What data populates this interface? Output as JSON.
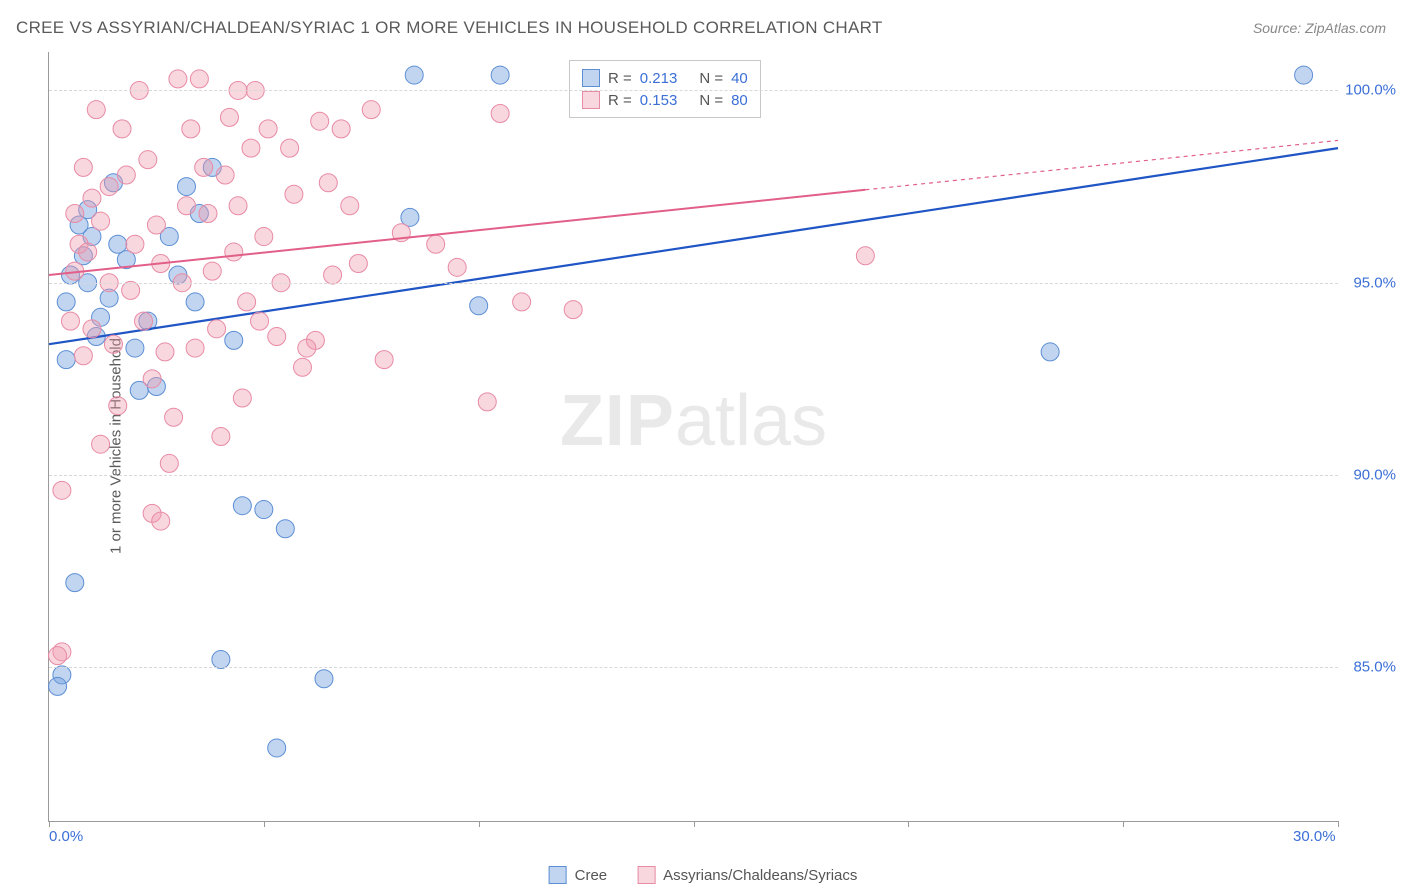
{
  "title": "CREE VS ASSYRIAN/CHALDEAN/SYRIAC 1 OR MORE VEHICLES IN HOUSEHOLD CORRELATION CHART",
  "source": "Source: ZipAtlas.com",
  "y_axis_label": "1 or more Vehicles in Household",
  "watermark_a": "ZIP",
  "watermark_b": "atlas",
  "chart": {
    "type": "scatter",
    "xlim": [
      0,
      30
    ],
    "ylim": [
      81,
      101
    ],
    "x_ticks": [
      0,
      5,
      10,
      15,
      20,
      25,
      30
    ],
    "x_tick_labels": {
      "0": "0.0%",
      "30": "30.0%"
    },
    "y_ticks": [
      85,
      90,
      95,
      100
    ],
    "y_tick_labels": {
      "85": "85.0%",
      "90": "90.0%",
      "95": "95.0%",
      "100": "100.0%"
    },
    "grid_color": "#d8d8d8",
    "axis_color": "#9a9a9a",
    "background_color": "#ffffff",
    "tick_label_color": "#3b6fd6",
    "marker_radius": 9,
    "series": [
      {
        "name": "Cree",
        "fill": "rgba(118,162,225,0.45)",
        "stroke": "#5d8fd4",
        "line_color": "#1f55c4",
        "line_width": 2.2,
        "r_label": "R =",
        "r_value": "0.213",
        "n_label": "N =",
        "n_value": "40",
        "trend": {
          "x1": 0,
          "y1": 93.4,
          "x2": 30,
          "y2": 98.5
        },
        "trend_solid_end_x": 30,
        "points": [
          [
            0.7,
            96.5
          ],
          [
            0.8,
            95.7
          ],
          [
            0.9,
            96.9
          ],
          [
            1.2,
            94.1
          ],
          [
            1.1,
            93.6
          ],
          [
            0.5,
            95.2
          ],
          [
            0.4,
            93.0
          ],
          [
            0.6,
            87.2
          ],
          [
            1.5,
            97.6
          ],
          [
            1.8,
            95.6
          ],
          [
            2.0,
            93.3
          ],
          [
            2.3,
            94.0
          ],
          [
            2.1,
            92.2
          ],
          [
            2.5,
            92.3
          ],
          [
            3.2,
            97.5
          ],
          [
            3.5,
            96.8
          ],
          [
            3.0,
            95.2
          ],
          [
            3.8,
            98.0
          ],
          [
            4.5,
            89.2
          ],
          [
            5.0,
            89.1
          ],
          [
            5.3,
            82.9
          ],
          [
            5.5,
            88.6
          ],
          [
            4.0,
            85.2
          ],
          [
            6.4,
            84.7
          ],
          [
            8.4,
            96.7
          ],
          [
            8.5,
            100.4
          ],
          [
            10.5,
            100.4
          ],
          [
            10.0,
            94.4
          ],
          [
            23.3,
            93.2
          ],
          [
            29.2,
            100.4
          ],
          [
            0.3,
            84.8
          ],
          [
            1.6,
            96.0
          ],
          [
            2.8,
            96.2
          ],
          [
            3.4,
            94.5
          ],
          [
            0.4,
            94.5
          ],
          [
            0.9,
            95.0
          ],
          [
            1.4,
            94.6
          ],
          [
            0.2,
            84.5
          ],
          [
            1.0,
            96.2
          ],
          [
            4.3,
            93.5
          ]
        ]
      },
      {
        "name": "Assyrians/Chaldeans/Syriacs",
        "fill": "rgba(239,154,175,0.40)",
        "stroke": "#e88ba5",
        "line_color": "#e15f88",
        "line_width": 2.0,
        "r_label": "R =",
        "r_value": "0.153",
        "n_label": "N =",
        "n_value": "80",
        "trend": {
          "x1": 0,
          "y1": 95.2,
          "x2": 30,
          "y2": 98.7
        },
        "trend_solid_end_x": 19,
        "points": [
          [
            0.3,
            89.6
          ],
          [
            0.3,
            85.4
          ],
          [
            0.5,
            94.0
          ],
          [
            0.6,
            95.3
          ],
          [
            0.8,
            93.1
          ],
          [
            0.7,
            96.0
          ],
          [
            0.9,
            95.8
          ],
          [
            1.0,
            97.2
          ],
          [
            1.2,
            96.6
          ],
          [
            1.4,
            95.0
          ],
          [
            1.5,
            93.4
          ],
          [
            1.6,
            91.8
          ],
          [
            1.8,
            97.8
          ],
          [
            2.0,
            96.0
          ],
          [
            2.2,
            94.0
          ],
          [
            2.4,
            92.5
          ],
          [
            2.6,
            95.5
          ],
          [
            2.8,
            90.3
          ],
          [
            3.0,
            100.3
          ],
          [
            3.2,
            97.0
          ],
          [
            3.4,
            93.3
          ],
          [
            3.6,
            98.0
          ],
          [
            3.8,
            95.3
          ],
          [
            4.0,
            91.0
          ],
          [
            4.2,
            99.3
          ],
          [
            4.4,
            97.0
          ],
          [
            4.6,
            94.5
          ],
          [
            4.8,
            100.0
          ],
          [
            5.0,
            96.2
          ],
          [
            5.3,
            93.6
          ],
          [
            5.6,
            98.5
          ],
          [
            5.9,
            92.8
          ],
          [
            6.2,
            93.5
          ],
          [
            6.5,
            97.6
          ],
          [
            6.8,
            99.0
          ],
          [
            7.0,
            97.0
          ],
          [
            7.2,
            95.5
          ],
          [
            7.5,
            99.5
          ],
          [
            7.8,
            93.0
          ],
          [
            8.2,
            96.3
          ],
          [
            9.0,
            96.0
          ],
          [
            9.5,
            95.4
          ],
          [
            10.2,
            91.9
          ],
          [
            10.5,
            99.4
          ],
          [
            11.0,
            94.5
          ],
          [
            12.2,
            94.3
          ],
          [
            19.0,
            95.7
          ],
          [
            0.6,
            96.8
          ],
          [
            0.8,
            98.0
          ],
          [
            1.0,
            93.8
          ],
          [
            1.2,
            90.8
          ],
          [
            1.4,
            97.5
          ],
          [
            1.7,
            99.0
          ],
          [
            1.9,
            94.8
          ],
          [
            2.1,
            100.0
          ],
          [
            2.3,
            98.2
          ],
          [
            2.5,
            96.5
          ],
          [
            2.7,
            93.2
          ],
          [
            2.9,
            91.5
          ],
          [
            3.1,
            95.0
          ],
          [
            3.3,
            99.0
          ],
          [
            3.5,
            100.3
          ],
          [
            3.7,
            96.8
          ],
          [
            3.9,
            93.8
          ],
          [
            4.1,
            97.8
          ],
          [
            4.3,
            95.8
          ],
          [
            4.5,
            92.0
          ],
          [
            4.7,
            98.5
          ],
          [
            4.9,
            94.0
          ],
          [
            5.1,
            99.0
          ],
          [
            5.4,
            95.0
          ],
          [
            5.7,
            97.3
          ],
          [
            6.0,
            93.3
          ],
          [
            6.3,
            99.2
          ],
          [
            6.6,
            95.2
          ],
          [
            0.2,
            85.3
          ],
          [
            2.4,
            89.0
          ],
          [
            1.1,
            99.5
          ],
          [
            4.4,
            100.0
          ],
          [
            2.6,
            88.8
          ]
        ]
      }
    ]
  },
  "bottom_legend": {
    "series1_label": "Cree",
    "series2_label": "Assyrians/Chaldeans/Syriacs"
  }
}
